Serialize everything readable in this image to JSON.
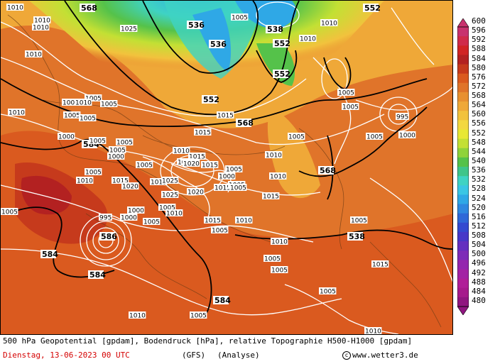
{
  "map": {
    "geopotential_labels": [
      "536",
      "536",
      "538",
      "538",
      "552",
      "552",
      "552",
      "568",
      "568",
      "568",
      "584",
      "584",
      "584",
      "584",
      "586",
      "552"
    ],
    "pressure_labels": [
      "1010",
      "1010",
      "1010",
      "1025",
      "1005",
      "1010",
      "1010",
      "1010",
      "1005",
      "1005",
      "1005",
      "1010",
      "1005",
      "1005",
      "1010",
      "1005",
      "1000",
      "1005",
      "1005",
      "1000",
      "1005",
      "1005",
      "1010",
      "1015",
      "1020",
      "1015",
      "1010",
      "1015",
      "1020",
      "1025",
      "1020",
      "1015",
      "1025",
      "1020",
      "1015",
      "1005",
      "1000",
      "1005",
      "1010",
      "1015",
      "1005",
      "1000",
      "1005",
      "995",
      "1000",
      "1005",
      "1005",
      "1010",
      "1005",
      "1005",
      "1005",
      "1010",
      "1010",
      "1005",
      "1015",
      "1015",
      "1015",
      "995",
      "1000",
      "1005",
      "1005",
      "1015",
      "1010",
      "1005",
      "1005",
      "1005",
      "1005",
      "1010",
      "1010"
    ],
    "colorbar": {
      "values": [
        "600",
        "596",
        "592",
        "588",
        "584",
        "580",
        "576",
        "572",
        "568",
        "564",
        "560",
        "556",
        "552",
        "548",
        "544",
        "540",
        "536",
        "532",
        "528",
        "524",
        "520",
        "516",
        "512",
        "508",
        "504",
        "500",
        "496",
        "492",
        "488",
        "484",
        "480"
      ],
      "colors": [
        "#c8326e",
        "#d02b4a",
        "#d12424",
        "#b32121",
        "#c63a1c",
        "#da5a1f",
        "#e0742a",
        "#e89030",
        "#efa838",
        "#f2c23d",
        "#f3d840",
        "#e8e834",
        "#c3e034",
        "#8fd33a",
        "#55c24a",
        "#3fc58a",
        "#3fd3c3",
        "#3ac6e4",
        "#2fa8e6",
        "#2f88e0",
        "#2f68d8",
        "#344ad0",
        "#4738c8",
        "#6430c0",
        "#7e2cb8",
        "#9426ae",
        "#a322a4",
        "#b01e98",
        "#a61a8c",
        "#901680"
      ]
    }
  },
  "footer": {
    "title": "500 hPa Geopotential [gpdam], Bodendruck [hPa], relative Topographie H500-H1000 [gpdam]",
    "date": "Dienstag, 13-06-2023  00 UTC",
    "model": "(GFS)",
    "analyse": "(Analyse)",
    "copyright": "www.wetter3.de"
  }
}
